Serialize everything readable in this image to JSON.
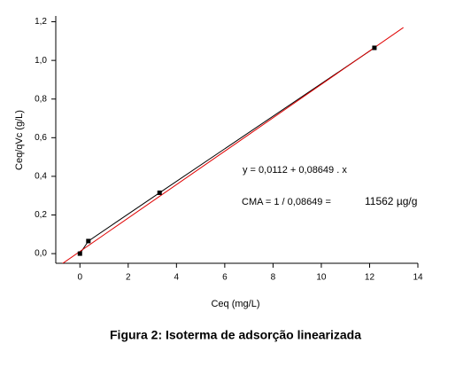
{
  "chart_data": {
    "type": "line",
    "caption": "Figura 2: Isoterma de adsorção linearizada",
    "xlabel": "Ceq (mg/L)",
    "ylabel": "Ceq/qVc (g/L)",
    "annotations": [
      "y = 0,0112 + 0,08649 . x",
      "CMA = 1 / 0,08649 =",
      "11562 µg/g"
    ],
    "xlim": [
      -1,
      14
    ],
    "ylim": [
      -0.05,
      1.23
    ],
    "xticks": [
      0,
      2,
      4,
      6,
      8,
      10,
      12,
      14
    ],
    "yticks": [
      {
        "value": 0,
        "label": "0,0"
      },
      {
        "value": 0.2,
        "label": "0,2"
      },
      {
        "value": 0.4,
        "label": "0,4"
      },
      {
        "value": 0.6,
        "label": "0,6"
      },
      {
        "value": 0.8,
        "label": "0,8"
      },
      {
        "value": 1.0,
        "label": "1,0"
      },
      {
        "value": 1.2,
        "label": "1,2"
      }
    ],
    "series": [
      {
        "color": "#000000",
        "markers": true,
        "x": [
          0,
          0.35,
          3.3,
          12.2
        ],
        "values": [
          0.0,
          0.065,
          0.315,
          1.065
        ]
      },
      {
        "color": "#e00000",
        "markers": false,
        "x": [
          -1,
          13.4
        ],
        "values": [
          -0.0753,
          1.17
        ]
      }
    ]
  }
}
